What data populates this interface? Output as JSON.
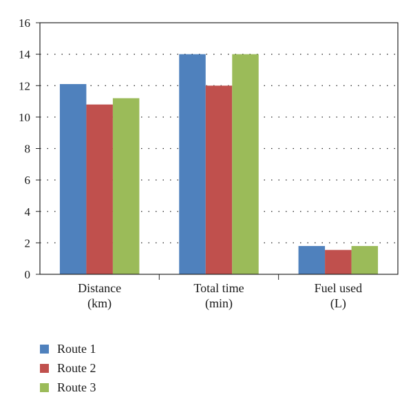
{
  "chart_data": {
    "type": "bar",
    "categories": [
      [
        "Distance",
        "(km)"
      ],
      [
        "Total time",
        "(min)"
      ],
      [
        "Fuel used",
        "(L)"
      ]
    ],
    "series": [
      {
        "name": "Route 1",
        "color": "#4f81bd",
        "values": [
          12.1,
          14.0,
          1.8
        ]
      },
      {
        "name": "Route 2",
        "color": "#c0504d",
        "values": [
          10.8,
          12.0,
          1.55
        ]
      },
      {
        "name": "Route 3",
        "color": "#9bbb59",
        "values": [
          11.2,
          14.0,
          1.8
        ]
      }
    ],
    "ylim": [
      0,
      16
    ],
    "yticks": [
      0,
      2,
      4,
      6,
      8,
      10,
      12,
      14,
      16
    ],
    "grid": "dotted horizontal",
    "legend_position": "bottom-left"
  }
}
